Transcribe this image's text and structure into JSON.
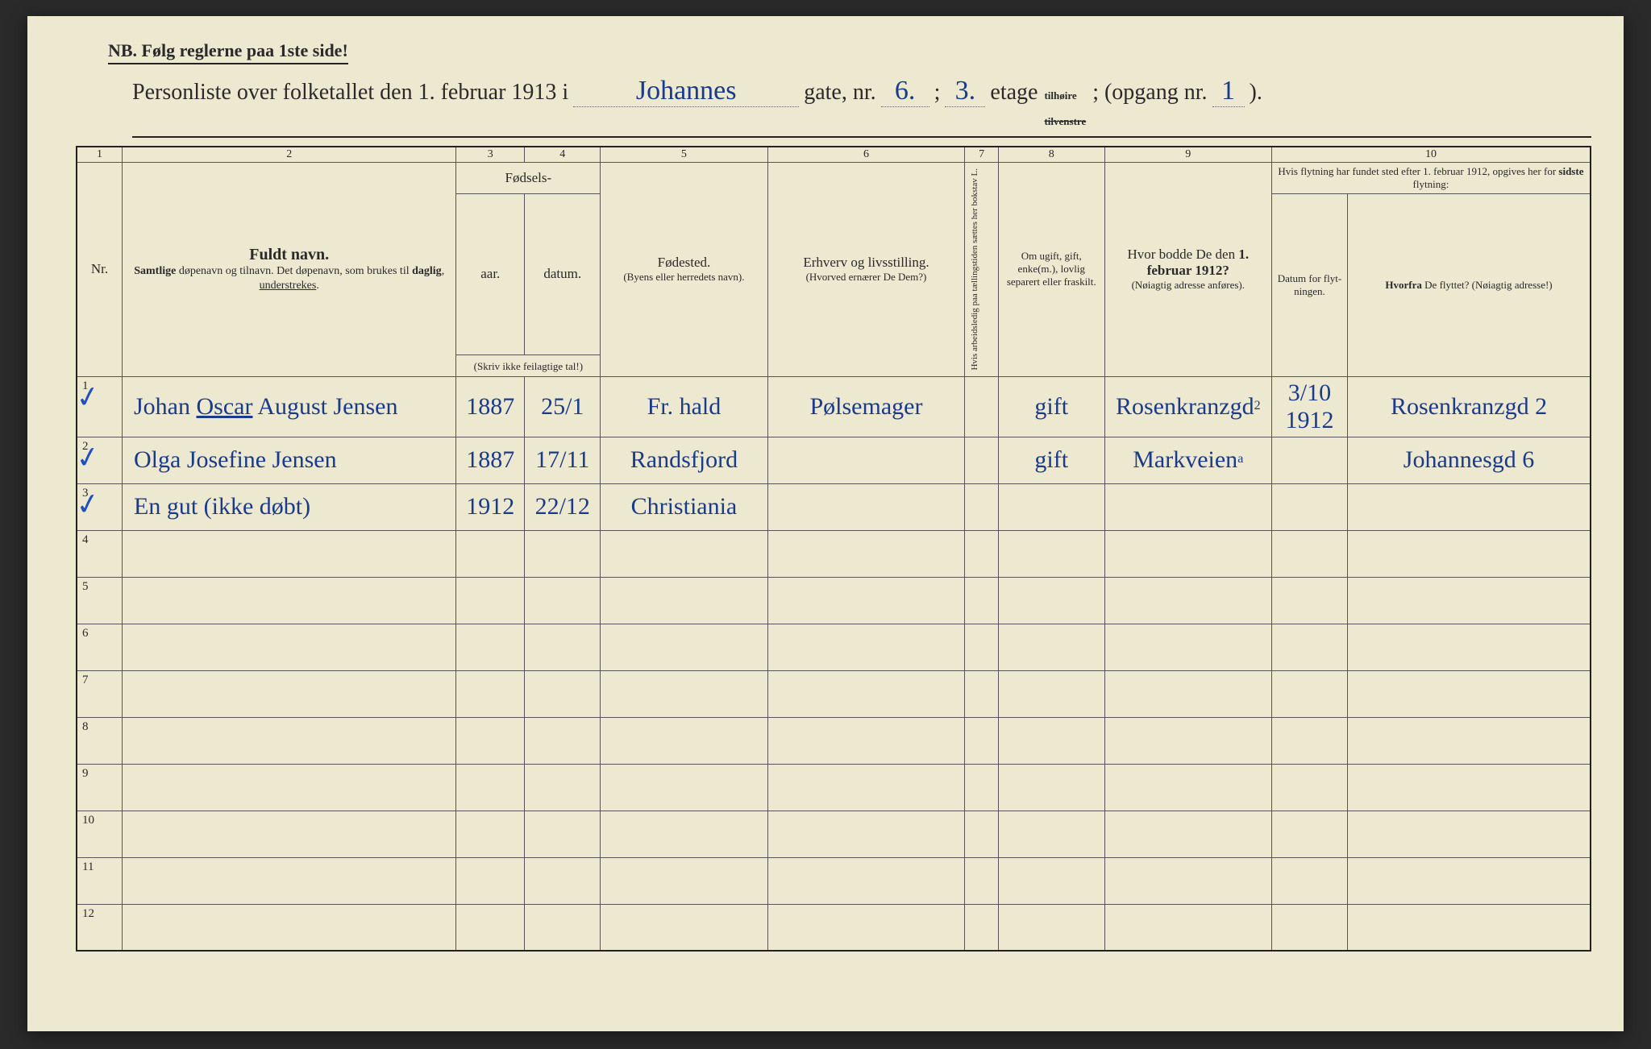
{
  "colors": {
    "paper": "#ede8d0",
    "ink_print": "#2a2a2a",
    "ink_hand": "#1a3a8a",
    "rule": "#555555"
  },
  "typography": {
    "print_family": "Times New Roman, Georgia, serif",
    "hand_family": "Brush Script MT, Segoe Script, cursive",
    "body_pt": 15,
    "title_pt": 28,
    "hand_pt": 30
  },
  "header": {
    "nb": "NB.  Følg reglerne paa 1ste side!",
    "title_prefix": "Personliste over folketallet den 1. februar 1913 i",
    "street_hand": "Johannes",
    "after_street": "gate, nr.",
    "nr_hand": "6.",
    "semi": ";",
    "etage_hand": "3.",
    "etage_label": "etage",
    "tilhoire": "tilhøire",
    "tilvenstre_struck": "tilvenstre",
    "opgang_label": "; (opgang nr.",
    "opgang_hand": "1",
    "close": ")."
  },
  "col_numbers": [
    "1",
    "2",
    "3",
    "4",
    "5",
    "6",
    "7",
    "8",
    "9",
    "10"
  ],
  "columns": {
    "nr": "Nr.",
    "fuldt_navn_title": "Fuldt navn.",
    "fuldt_navn_sub": "Samtlige døpenavn og tilnavn. Det døpenavn, som brukes til daglig, understrekes.",
    "fodsels_group": "Fødsels-",
    "aar": "aar.",
    "datum": "datum.",
    "fodsels_note": "(Skriv ikke feilagtige tal!)",
    "fodested_title": "Fødested.",
    "fodested_sub": "(Byens eller herredets navn).",
    "erhverv_title": "Erhverv og livsstilling.",
    "erhverv_sub": "(Hvorved ernærer De Dem?)",
    "col7_rot": "Hvis arbeidsledig paa tællingstiden sættes her bokstav L.",
    "col8": "Om ugift, gift, enke(m.), lovlig separert eller fraskilt.",
    "col9_title": "Hvor bodde De den 1. februar 1912?",
    "col9_sub": "(Nøiagtig adresse anføres).",
    "col10_top": "Hvis flytning har fundet sted efter 1. februar 1912, opgives her for sidste flytning:",
    "col10a": "Datum for flyt-ningen.",
    "col10b": "Hvorfra De flyttet? (Nøiagtig adresse!)"
  },
  "rows": [
    {
      "nr": "1",
      "checked": true,
      "name": "Johan Oscar August Jensen",
      "name_underline": "Oscar",
      "aar": "1887",
      "datum": "25/1",
      "fodested": "Fr. hald",
      "erhverv": "Pølsemager",
      "col7": "",
      "col8": "gift",
      "col9": "Rosenkranzgd",
      "col9_sup": "2",
      "col10a": "3/10 1912",
      "col10b": "Rosenkranzgd 2"
    },
    {
      "nr": "2",
      "checked": true,
      "name": "Olga Josefine Jensen",
      "aar": "1887",
      "datum": "17/11",
      "fodested": "Randsfjord",
      "erhverv": "",
      "col7": "",
      "col8": "gift",
      "col9": "Markveien",
      "col9_sup": "a",
      "col10a": "",
      "col10b": "Johannesgd 6"
    },
    {
      "nr": "3",
      "checked": true,
      "name": "En gut (ikke døbt)",
      "aar": "1912",
      "datum": "22/12",
      "fodested": "Christiania",
      "erhverv": "",
      "col7": "",
      "col8": "",
      "col9": "",
      "col10a": "",
      "col10b": ""
    },
    {
      "nr": "4"
    },
    {
      "nr": "5"
    },
    {
      "nr": "6"
    },
    {
      "nr": "7"
    },
    {
      "nr": "8"
    },
    {
      "nr": "9"
    },
    {
      "nr": "10"
    },
    {
      "nr": "11"
    },
    {
      "nr": "12"
    }
  ]
}
